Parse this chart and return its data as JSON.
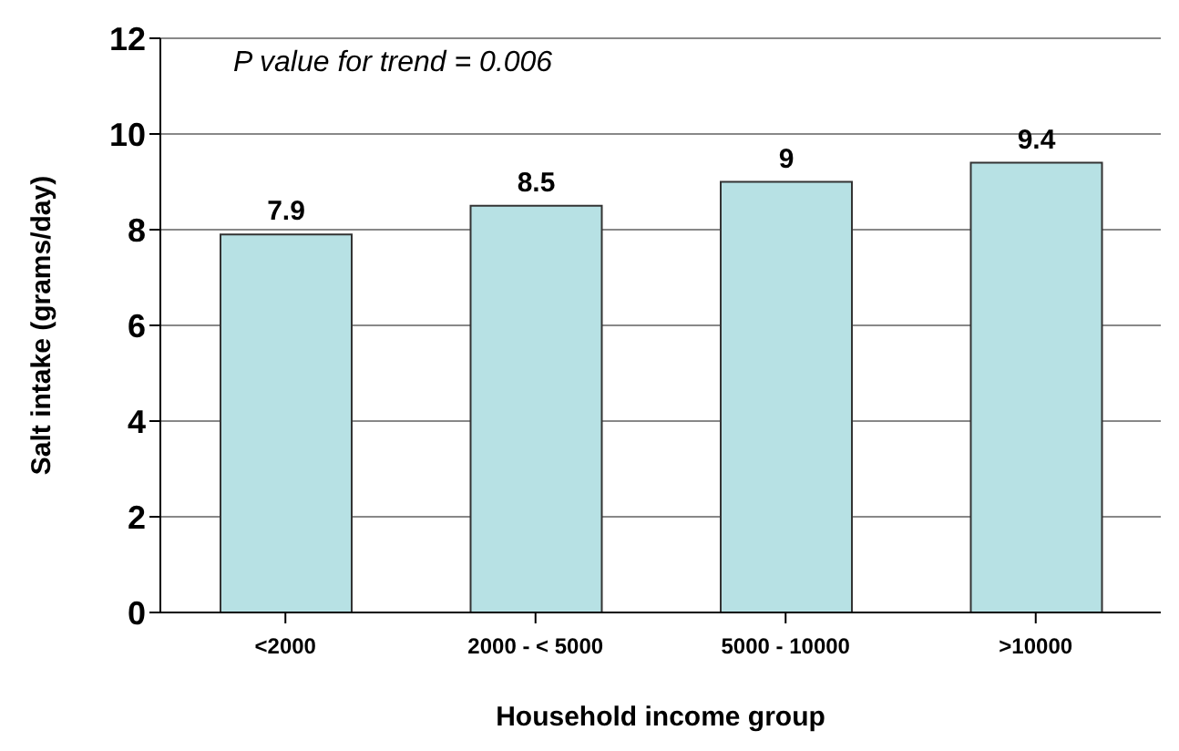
{
  "chart_data": {
    "type": "bar",
    "xlabel": "Household income group",
    "ylabel": "Salt intake (grams/day)",
    "categories": [
      "<2000",
      "2000 - < 5000",
      "5000 - 10000",
      ">10000"
    ],
    "values": [
      7.9,
      8.5,
      9,
      9.4
    ],
    "color": "#b7e1e4",
    "ylim": [
      0,
      12
    ],
    "yticks": [
      0,
      2,
      4,
      6,
      8,
      10,
      12
    ],
    "grid": "y",
    "data_labels": true,
    "annotations": [
      "P value for trend = 0.006"
    ]
  }
}
